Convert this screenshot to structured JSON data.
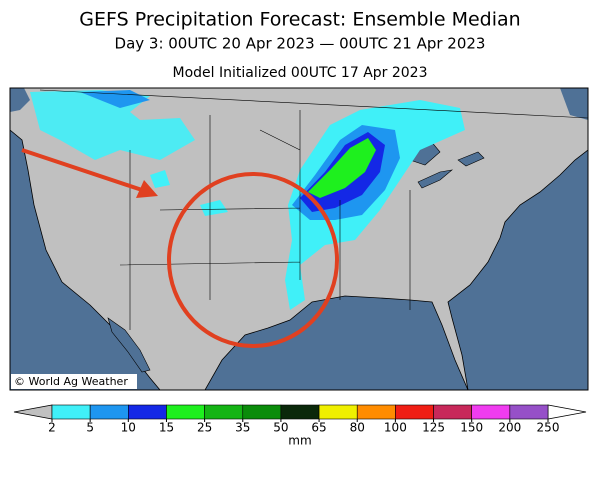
{
  "header": {
    "title": "GEFS Precipitation Forecast: Ensemble Median",
    "subtitle": "Day 3: 00UTC 20 Apr 2023 — 00UTC 21 Apr 2023",
    "initialized": "Model Initialized 00UTC 17 Apr 2023"
  },
  "map": {
    "credit": "© World Ag Weather"
  },
  "colorbar": {
    "levels": [
      2,
      5,
      10,
      15,
      25,
      35,
      50,
      65,
      80,
      100,
      125,
      150,
      200,
      250
    ],
    "colors": [
      "#40f0f8",
      "#1e96f0",
      "#1428e6",
      "#1ef01e",
      "#14b414",
      "#0a8c0a",
      "#0a280a",
      "#f0f000",
      "#ff8c00",
      "#f01e14",
      "#c8285a",
      "#f03cf0",
      "#9650c8"
    ],
    "under_color": "#c0c0c0",
    "over_color": "#ffffff",
    "unit": "mm"
  }
}
